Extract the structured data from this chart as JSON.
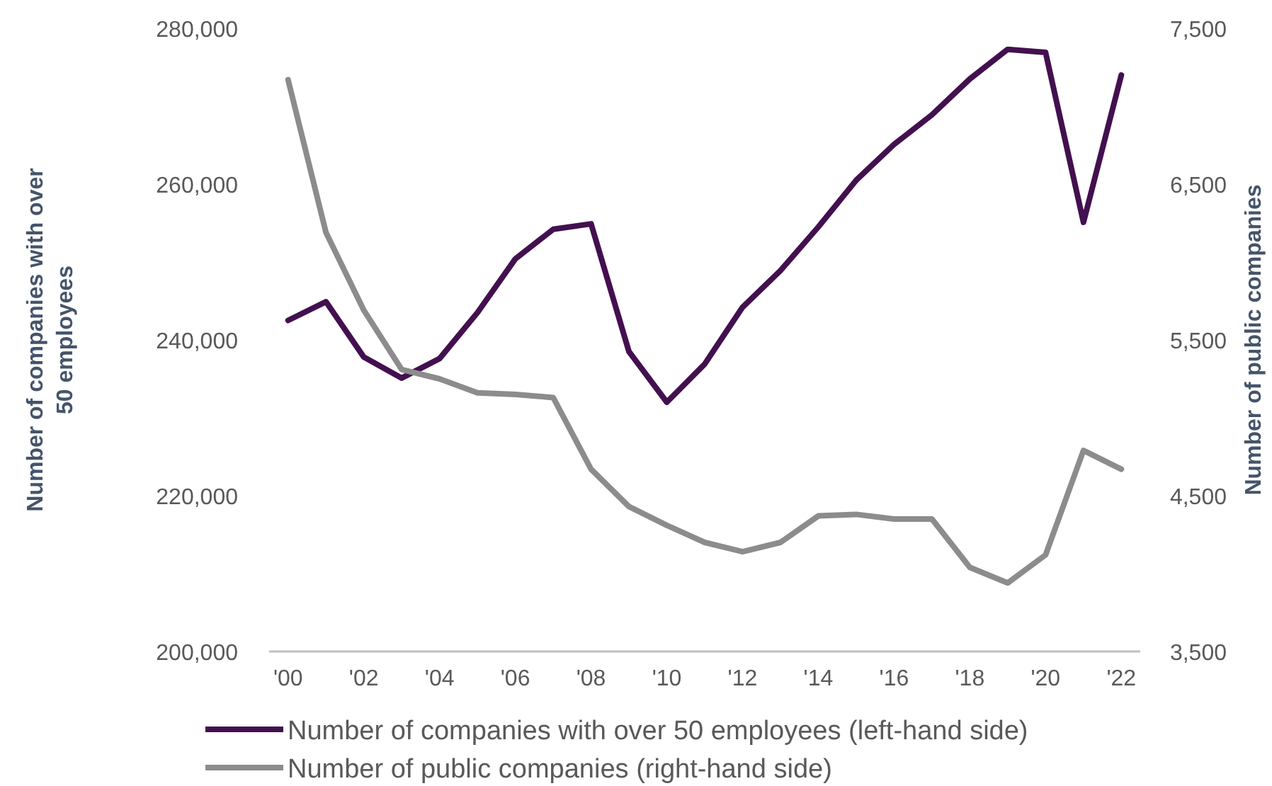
{
  "chart_data": {
    "type": "line",
    "ylabel": "Number of companies with over 50 employees",
    "y2label": "Number of public companies",
    "x": [
      2000,
      2001,
      2002,
      2003,
      2004,
      2005,
      2006,
      2007,
      2008,
      2009,
      2010,
      2011,
      2012,
      2013,
      2014,
      2015,
      2016,
      2017,
      2018,
      2019,
      2020,
      2021,
      2022
    ],
    "xlim": [
      1999.5,
      2022.5
    ],
    "xticks": [
      {
        "value": 2000,
        "label": "'00"
      },
      {
        "value": 2002,
        "label": "'02"
      },
      {
        "value": 2004,
        "label": "'04"
      },
      {
        "value": 2006,
        "label": "'06"
      },
      {
        "value": 2008,
        "label": "'08"
      },
      {
        "value": 2010,
        "label": "'10"
      },
      {
        "value": 2012,
        "label": "'12"
      },
      {
        "value": 2014,
        "label": "'14"
      },
      {
        "value": 2016,
        "label": "'16"
      },
      {
        "value": 2018,
        "label": "'18"
      },
      {
        "value": 2020,
        "label": "'20"
      },
      {
        "value": 2022,
        "label": "'22"
      }
    ],
    "ylim": [
      200000,
      280000
    ],
    "yticks": [
      {
        "value": 200000,
        "label": "200,000"
      },
      {
        "value": 220000,
        "label": "220,000"
      },
      {
        "value": 240000,
        "label": "240,000"
      },
      {
        "value": 260000,
        "label": "260,000"
      },
      {
        "value": 280000,
        "label": "280,000"
      }
    ],
    "y2lim": [
      3500,
      7500
    ],
    "y2ticks": [
      {
        "value": 3500,
        "label": "3,500"
      },
      {
        "value": 4500,
        "label": "4,500"
      },
      {
        "value": 5500,
        "label": "5,500"
      },
      {
        "value": 6500,
        "label": "6,500"
      },
      {
        "value": 7500,
        "label": "7,500"
      }
    ],
    "series": [
      {
        "name": "Number of companies with over 50 employees (left-hand side)",
        "color": "#43104f",
        "values": [
          242500,
          244900,
          237800,
          235100,
          237600,
          243500,
          250400,
          254200,
          254900,
          238500,
          232000,
          236900,
          244200,
          248900,
          254500,
          260500,
          265100,
          268900,
          273500,
          277300,
          276900,
          255100,
          274000
        ]
      },
      {
        "name": "Number of public companies (right-hand side)",
        "color": "#8c8c8c",
        "axis": "y2",
        "values": [
          7170,
          6190,
          5690,
          5310,
          5250,
          5160,
          5150,
          5130,
          4670,
          4430,
          4310,
          4200,
          4140,
          4200,
          4370,
          4380,
          4350,
          4350,
          4040,
          3940,
          4120,
          4790,
          4670
        ]
      }
    ],
    "legend": "bottom",
    "grid": false,
    "marker": "none",
    "line_style": "solid"
  }
}
